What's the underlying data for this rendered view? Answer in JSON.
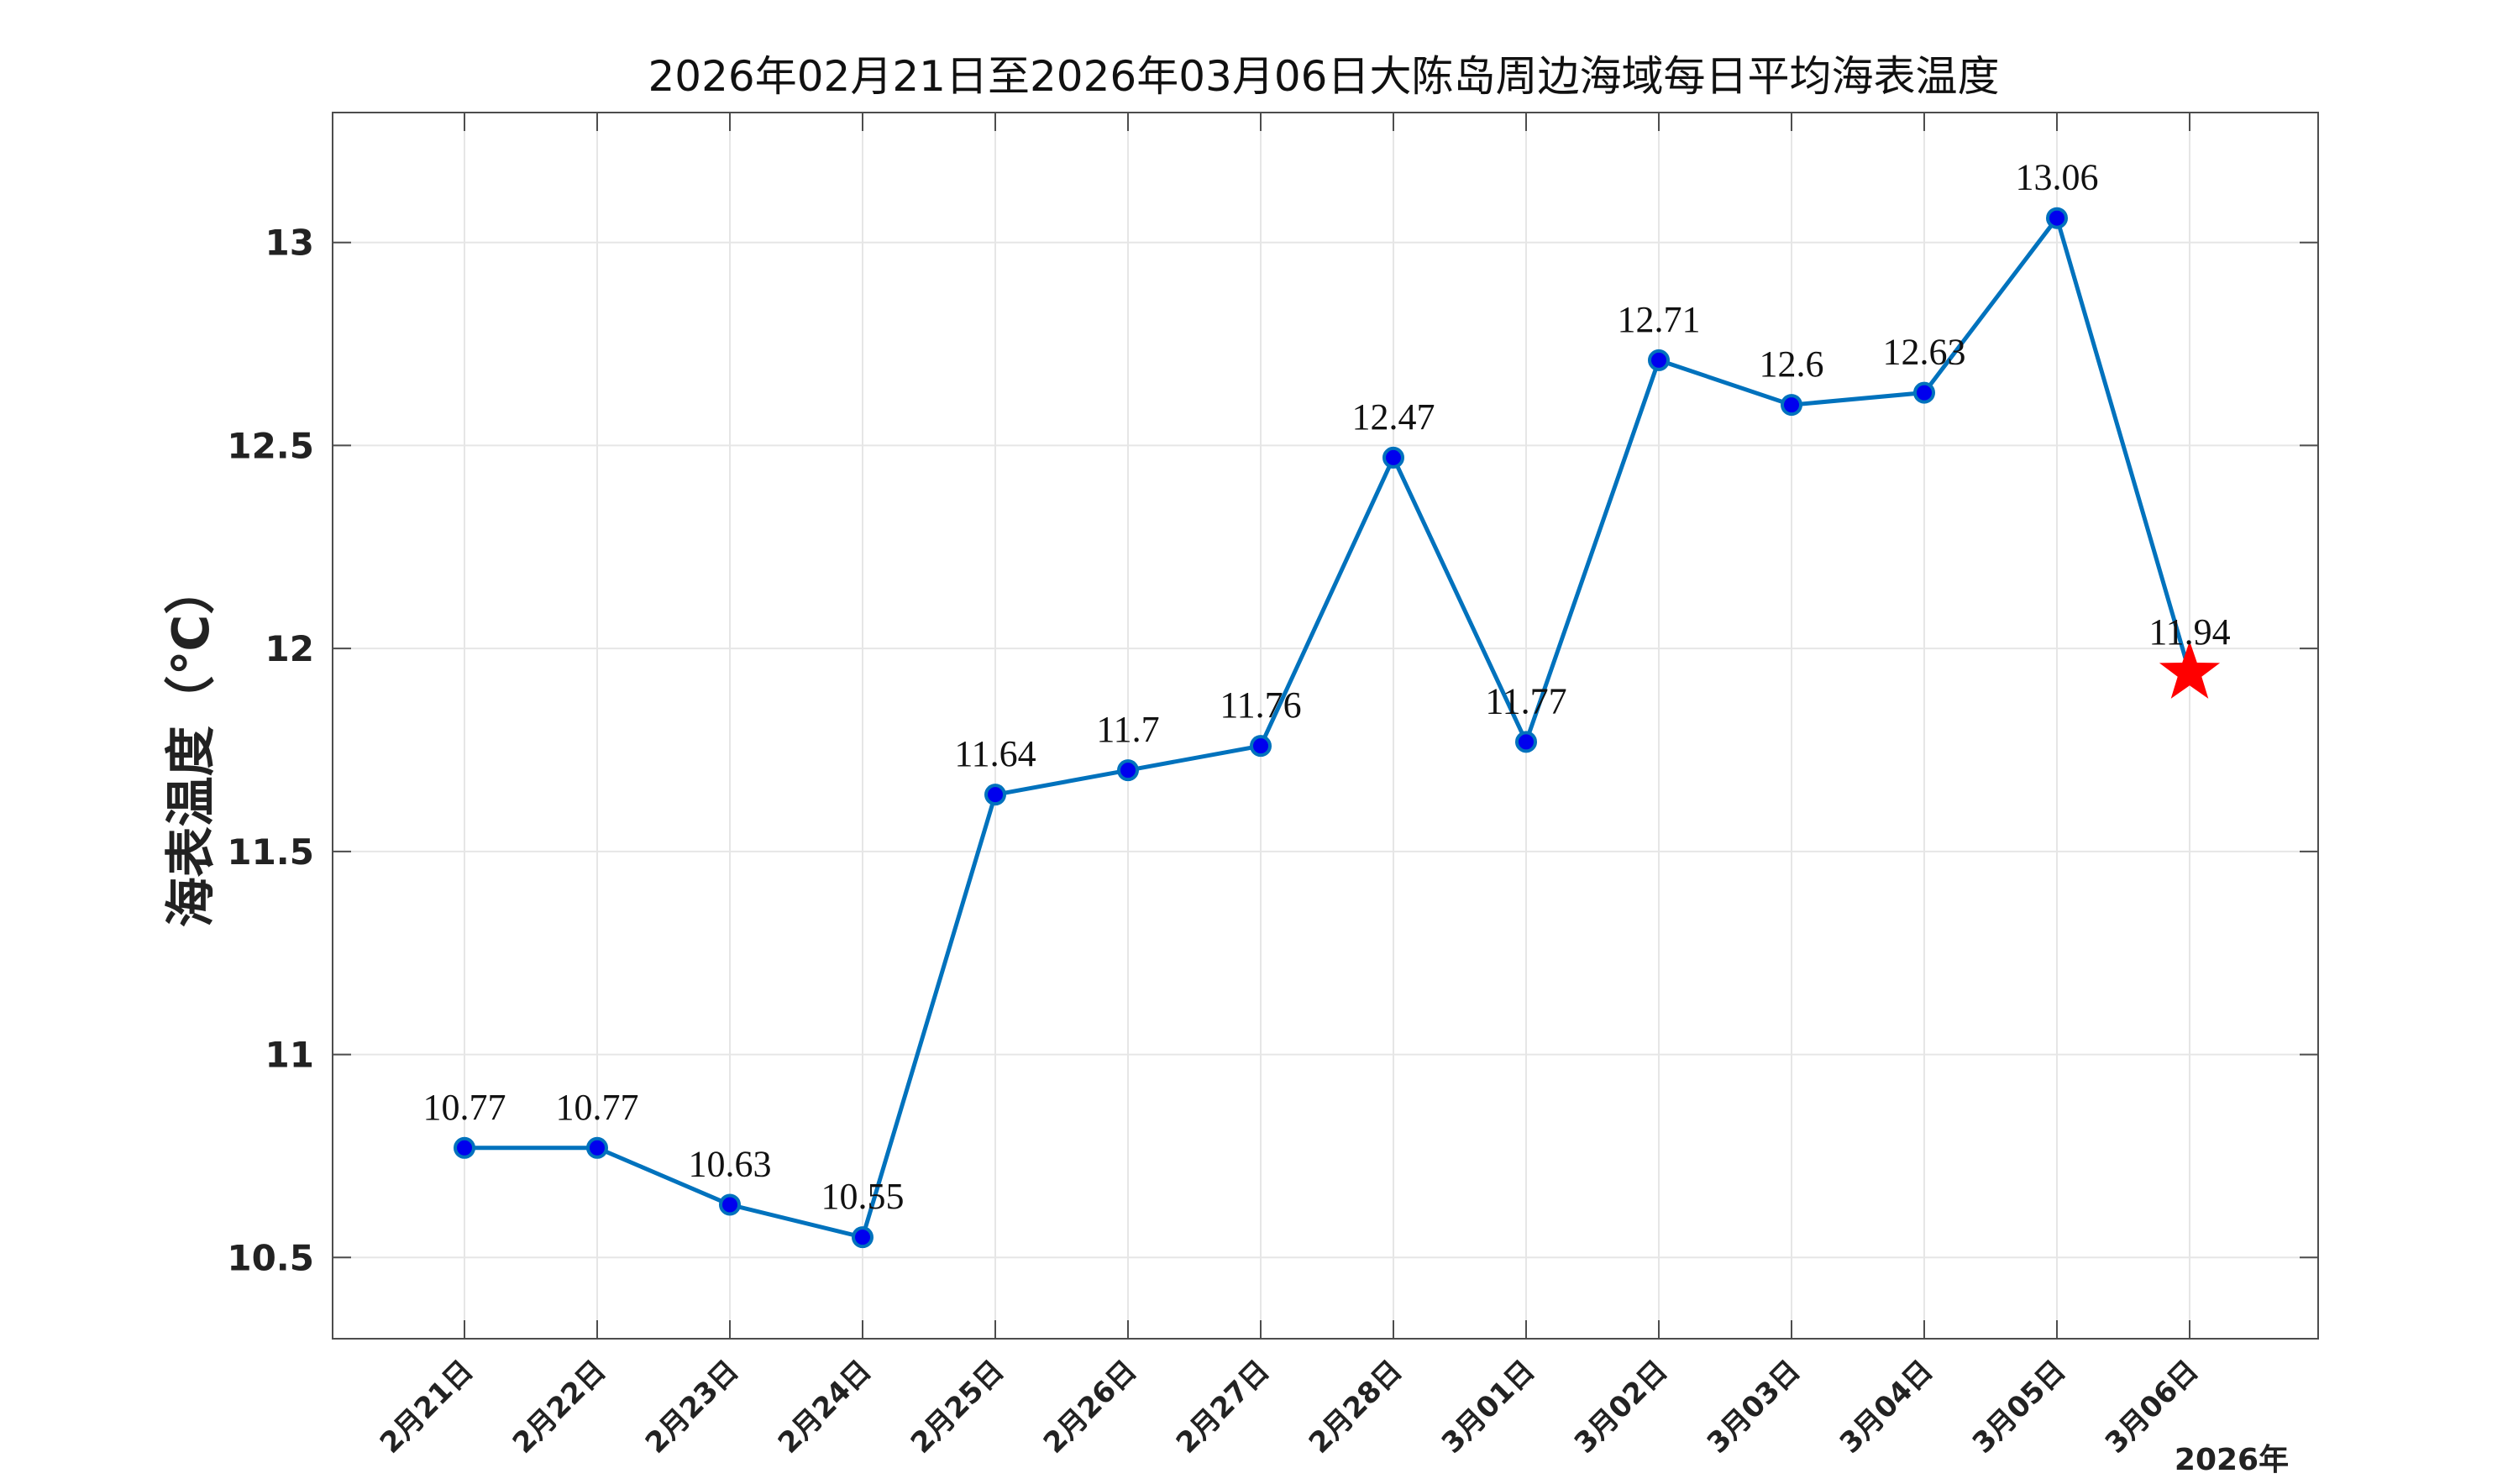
{
  "chart_data": {
    "type": "line",
    "title": "2026年02月21日至2026年03月06日大陈岛周边海域每日平均海表温度",
    "ylabel": "海表温度（℃）",
    "xlabel": "",
    "year_label": "2026年",
    "categories": [
      "2月21日",
      "2月22日",
      "2月23日",
      "2月24日",
      "2月25日",
      "2月26日",
      "2月27日",
      "2月28日",
      "3月01日",
      "3月02日",
      "3月03日",
      "3月04日",
      "3月05日",
      "3月06日"
    ],
    "values": [
      10.77,
      10.77,
      10.63,
      10.55,
      11.64,
      11.7,
      11.76,
      12.47,
      11.77,
      12.71,
      12.6,
      12.63,
      13.06,
      11.94
    ],
    "value_labels": [
      "10.77",
      "10.77",
      "10.63",
      "10.55",
      "11.64",
      "11.7",
      "11.76",
      "12.47",
      "11.77",
      "12.71",
      "12.6",
      "12.63",
      "13.06",
      "11.94"
    ],
    "ylim": [
      10.3,
      13.32
    ],
    "yticks": [
      10.5,
      11,
      11.5,
      12,
      12.5,
      13
    ],
    "ytick_labels": [
      "10.5",
      "11",
      "11.5",
      "12",
      "12.5",
      "13"
    ],
    "grid": true,
    "line_color": "#0072BD",
    "marker_color": "#0000EE",
    "forecast_marker": "star",
    "forecast_color": "#FF0000"
  }
}
